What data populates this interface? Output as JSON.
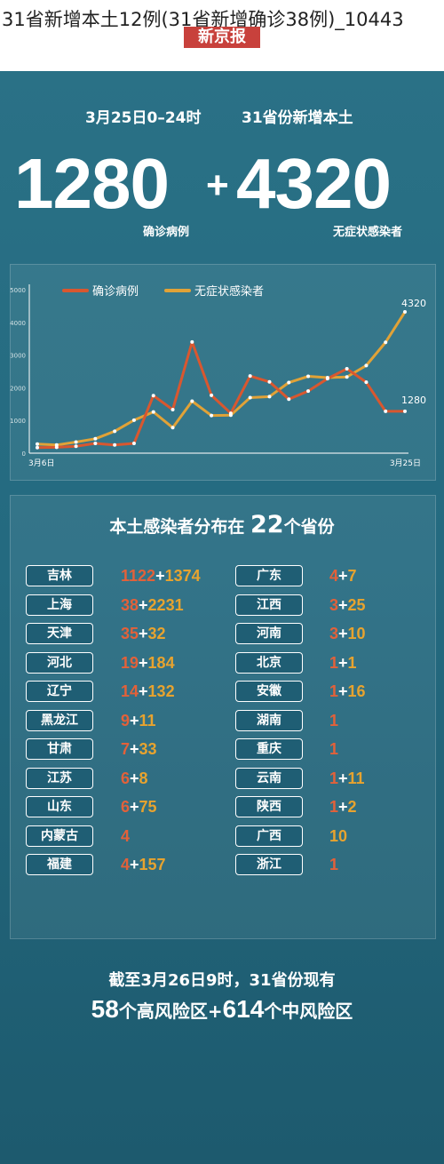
{
  "caption": "31省新增本土12例(31省新增确诊38例)_10443",
  "brand": "新京报",
  "header": {
    "date_label": "3月25日0–24时",
    "region_label": "31省份新增本土",
    "confirmed_total": "1280",
    "plus_sign": "+",
    "asymptomatic_total": "4320",
    "confirmed_label": "确诊病例",
    "asymptomatic_label": "无症状感染者"
  },
  "chart_data": {
    "type": "line",
    "x_start_label": "3月6日",
    "x_end_label": "3月25日",
    "ylim": [
      0,
      5000
    ],
    "yticks": [
      "0",
      "1000",
      "2000",
      "3000",
      "4000",
      "5000"
    ],
    "legend": [
      "确诊病例",
      "无症状感染者"
    ],
    "legend_position": "top-left",
    "series": [
      {
        "name": "确诊病例",
        "color": "#d9572f",
        "values": [
          170,
          180,
          210,
          300,
          250,
          300,
          1760,
          1330,
          3400,
          1770,
          1220,
          2360,
          2180,
          1650,
          1900,
          2280,
          2580,
          2170,
          1280,
          1280
        ]
      },
      {
        "name": "无症状感染者",
        "color": "#e1a237",
        "values": [
          280,
          250,
          340,
          440,
          670,
          1010,
          1260,
          780,
          1590,
          1150,
          1160,
          1700,
          1730,
          2160,
          2350,
          2310,
          2330,
          2680,
          3390,
          4320
        ]
      }
    ],
    "end_labels": [
      "4320",
      "1280"
    ]
  },
  "distribution": {
    "title_prefix": "本土感染者分布在",
    "count": "22",
    "title_suffix": "个省份",
    "left": [
      {
        "name": "吉林",
        "confirmed": "1122",
        "asymptomatic": "1374"
      },
      {
        "name": "上海",
        "confirmed": "38",
        "asymptomatic": "2231"
      },
      {
        "name": "天津",
        "confirmed": "35",
        "asymptomatic": "32"
      },
      {
        "name": "河北",
        "confirmed": "19",
        "asymptomatic": "184"
      },
      {
        "name": "辽宁",
        "confirmed": "14",
        "asymptomatic": "132"
      },
      {
        "name": "黑龙江",
        "confirmed": "9",
        "asymptomatic": "11"
      },
      {
        "name": "甘肃",
        "confirmed": "7",
        "asymptomatic": "33"
      },
      {
        "name": "江苏",
        "confirmed": "6",
        "asymptomatic": "8"
      },
      {
        "name": "山东",
        "confirmed": "6",
        "asymptomatic": "75"
      },
      {
        "name": "内蒙古",
        "confirmed": "4",
        "asymptomatic": ""
      },
      {
        "name": "福建",
        "confirmed": "4",
        "asymptomatic": "157"
      }
    ],
    "right": [
      {
        "name": "广东",
        "confirmed": "4",
        "asymptomatic": "7"
      },
      {
        "name": "江西",
        "confirmed": "3",
        "asymptomatic": "25"
      },
      {
        "name": "河南",
        "confirmed": "3",
        "asymptomatic": "10"
      },
      {
        "name": "北京",
        "confirmed": "1",
        "asymptomatic": "1"
      },
      {
        "name": "安徽",
        "confirmed": "1",
        "asymptomatic": "16"
      },
      {
        "name": "湖南",
        "confirmed": "1",
        "asymptomatic": ""
      },
      {
        "name": "重庆",
        "confirmed": "1",
        "asymptomatic": ""
      },
      {
        "name": "云南",
        "confirmed": "1",
        "asymptomatic": "11"
      },
      {
        "name": "陕西",
        "confirmed": "1",
        "asymptomatic": "2"
      },
      {
        "name": "广西",
        "confirmed": "",
        "asymptomatic": "10"
      },
      {
        "name": "浙江",
        "confirmed": "1",
        "asymptomatic": ""
      }
    ]
  },
  "footer": {
    "line1": "截至3月26日9时，31省份现有",
    "high_risk": "58",
    "high_label": "个高风险区+",
    "mid_risk": "614",
    "mid_label": "个中风险区"
  }
}
